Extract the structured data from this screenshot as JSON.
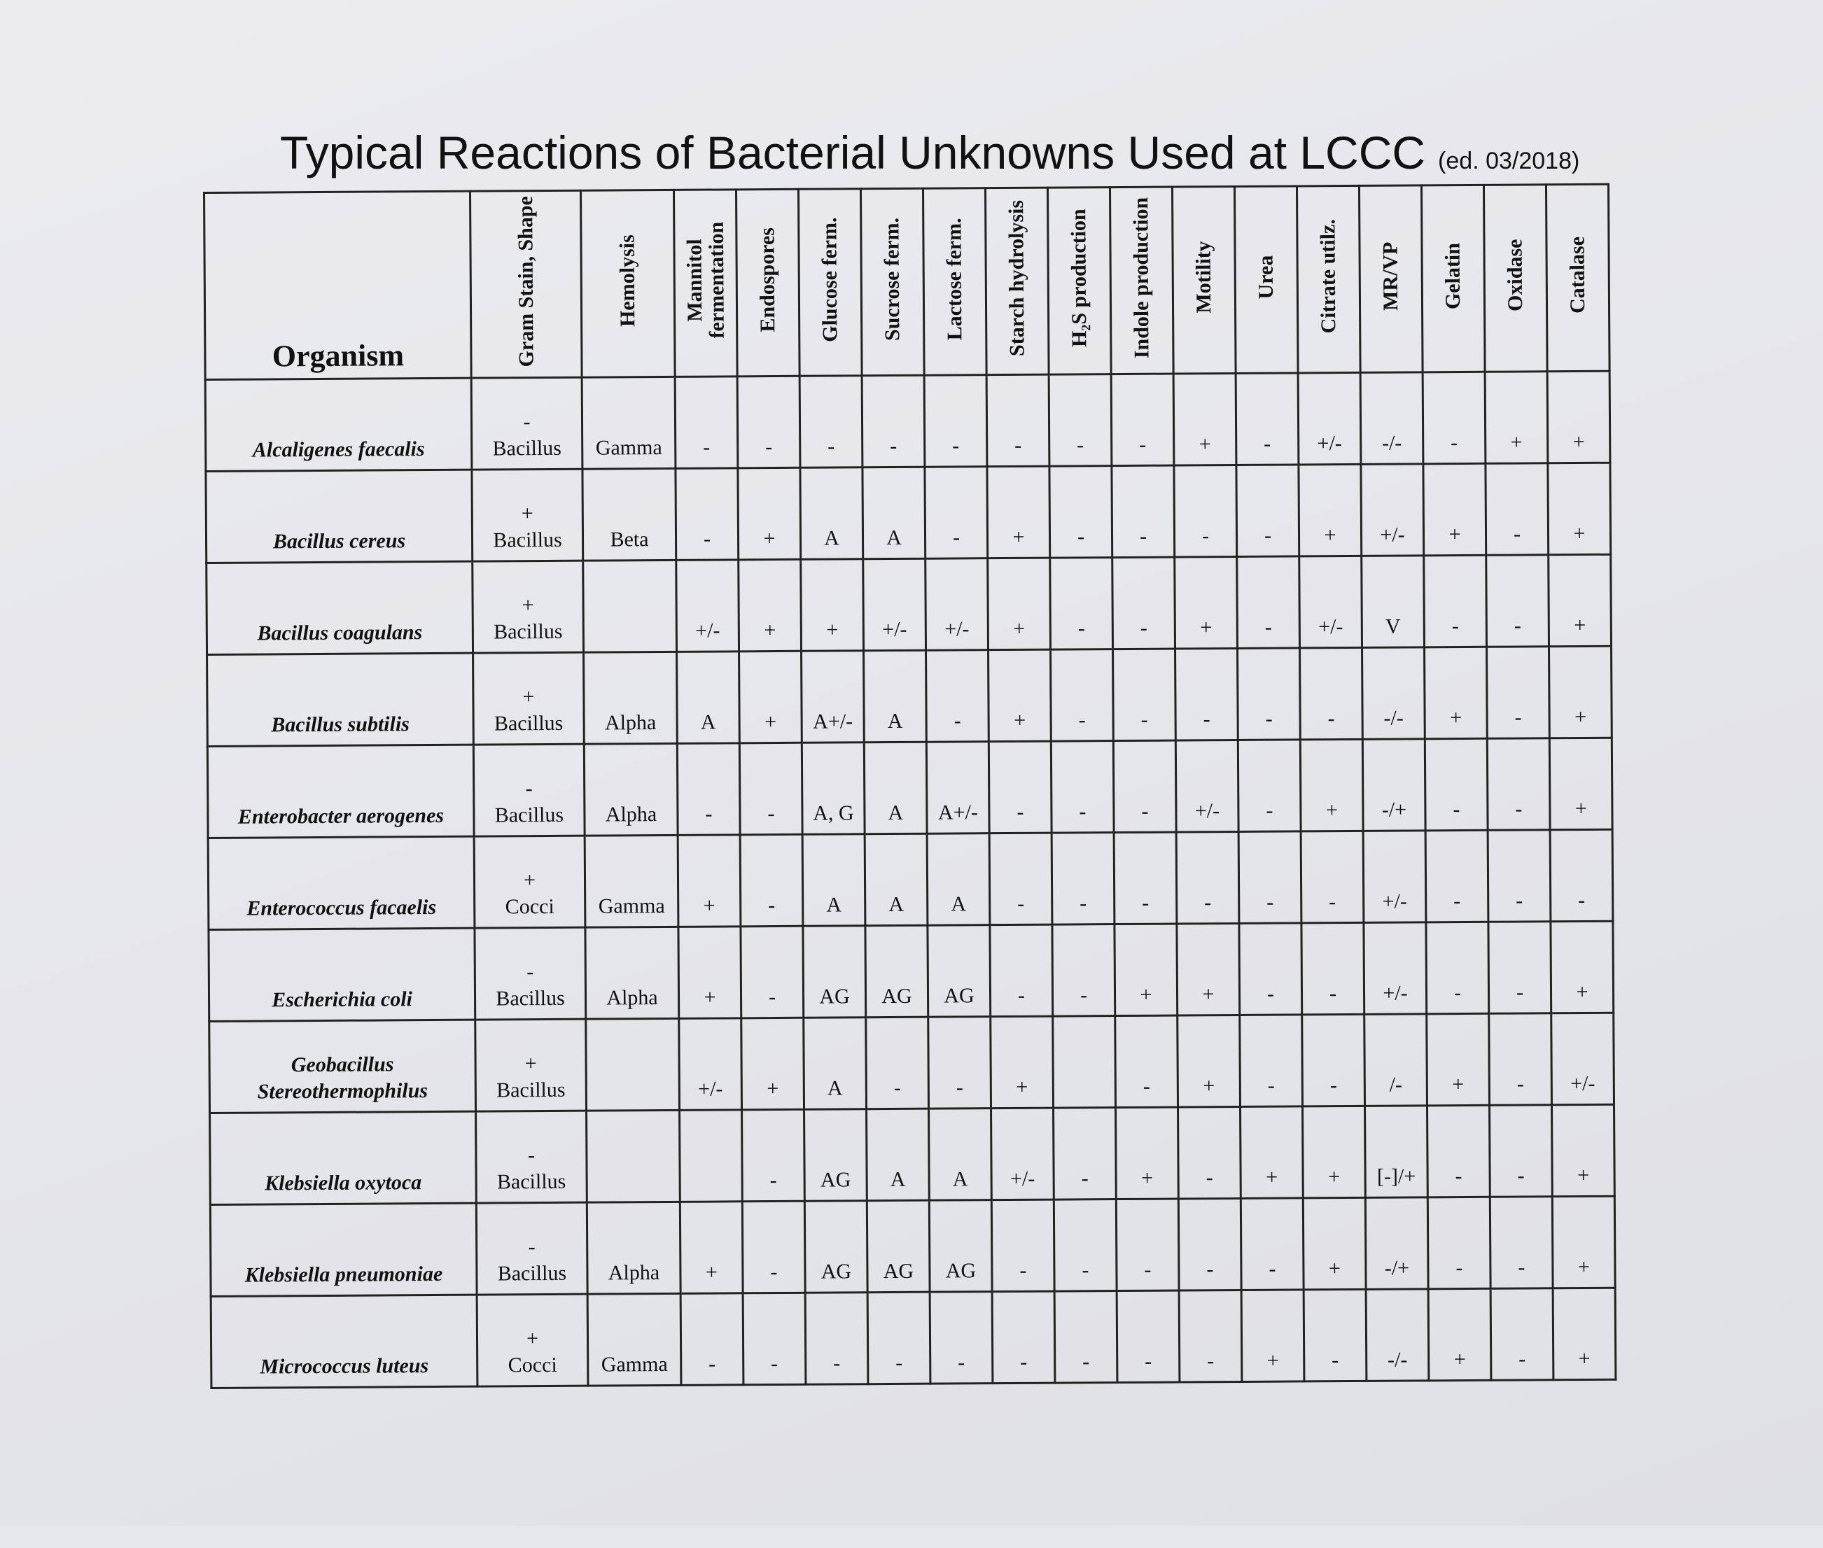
{
  "header": {
    "title": "Typical Reactions of Bacterial Unknowns Used at LCCC",
    "edition": "(ed. 03/2018)"
  },
  "table": {
    "columns": [
      "Organism",
      "Gram Stain, Shape",
      "Hemolysis",
      "Mannitol fermentation",
      "Endospores",
      "Glucose ferm.",
      "Sucrose ferm.",
      "Lactose ferm.",
      "Starch hydrolysis",
      "H₂S production",
      "Indole production",
      "Motility",
      "Urea",
      "Citrate utilz.",
      "MR/VP",
      "Gelatin",
      "Oxidase",
      "Catalase"
    ],
    "rows": [
      [
        "Alcaligenes faecalis",
        "-\nBacillus",
        "Gamma",
        "-",
        "-",
        "-",
        "-",
        "-",
        "-",
        "-",
        "-",
        "+",
        "-",
        "+/-",
        "-/-",
        "-",
        "+",
        "+"
      ],
      [
        "Bacillus cereus",
        "+\nBacillus",
        "Beta",
        "-",
        "+",
        "A",
        "A",
        "-",
        "+",
        "-",
        "-",
        "-",
        "-",
        "+",
        "+/-",
        "+",
        "-",
        "+"
      ],
      [
        "Bacillus coagulans",
        "+\nBacillus",
        null,
        "+/-",
        "+",
        "+",
        "+/-",
        "+/-",
        "+",
        "-",
        "-",
        "+",
        "-",
        "+/-",
        "V",
        "-",
        "-",
        "+"
      ],
      [
        "Bacillus subtilis",
        "+\nBacillus",
        "Alpha",
        "A",
        "+",
        "A+/-",
        "A",
        "-",
        "+",
        "-",
        "-",
        "-",
        "-",
        "-",
        "-/-",
        "+",
        "-",
        "+"
      ],
      [
        "Enterobacter aerogenes",
        "-\nBacillus",
        "Alpha",
        "-",
        "-",
        "A, G",
        "A",
        "A+/-",
        "-",
        "-",
        "-",
        "+/-",
        "-",
        "+",
        "-/+",
        "-",
        "-",
        "+"
      ],
      [
        "Enterococcus facaelis",
        "+\nCocci",
        "Gamma",
        "+",
        "-",
        "A",
        "A",
        "A",
        "-",
        "-",
        "-",
        "-",
        "-",
        "-",
        "+/-",
        "-",
        "-",
        "-"
      ],
      [
        "Escherichia coli",
        "-\nBacillus",
        "Alpha",
        "+",
        "-",
        "AG",
        "AG",
        "AG",
        "-",
        "-",
        "+",
        "+",
        "-",
        "-",
        "+/-",
        "-",
        "-",
        "+"
      ],
      [
        "Geobacillus Stereothermophilus",
        "+\nBacillus",
        null,
        "+/-",
        "+",
        "A",
        "-",
        "-",
        "+",
        null,
        "-",
        "+",
        "-",
        "-",
        "/-",
        "+",
        "-",
        "+/-"
      ],
      [
        "Klebsiella oxytoca",
        "-\nBacillus",
        null,
        null,
        "-",
        "AG",
        "A",
        "A",
        "+/-",
        "-",
        "+",
        "-",
        "+",
        "+",
        "[-]/+",
        "-",
        "-",
        "+"
      ],
      [
        "Klebsiella pneumoniae",
        "-\nBacillus",
        "Alpha",
        "+",
        "-",
        "AG",
        "AG",
        "AG",
        "-",
        "-",
        "-",
        "-",
        "-",
        "+",
        "-/+",
        "-",
        "-",
        "+"
      ],
      [
        "Micrococcus luteus",
        "+\nCocci",
        "Gamma",
        "-",
        "-",
        "-",
        "-",
        "-",
        "-",
        "-",
        "-",
        "-",
        "+",
        "-",
        "-/-",
        "+",
        "-",
        "+"
      ]
    ]
  }
}
